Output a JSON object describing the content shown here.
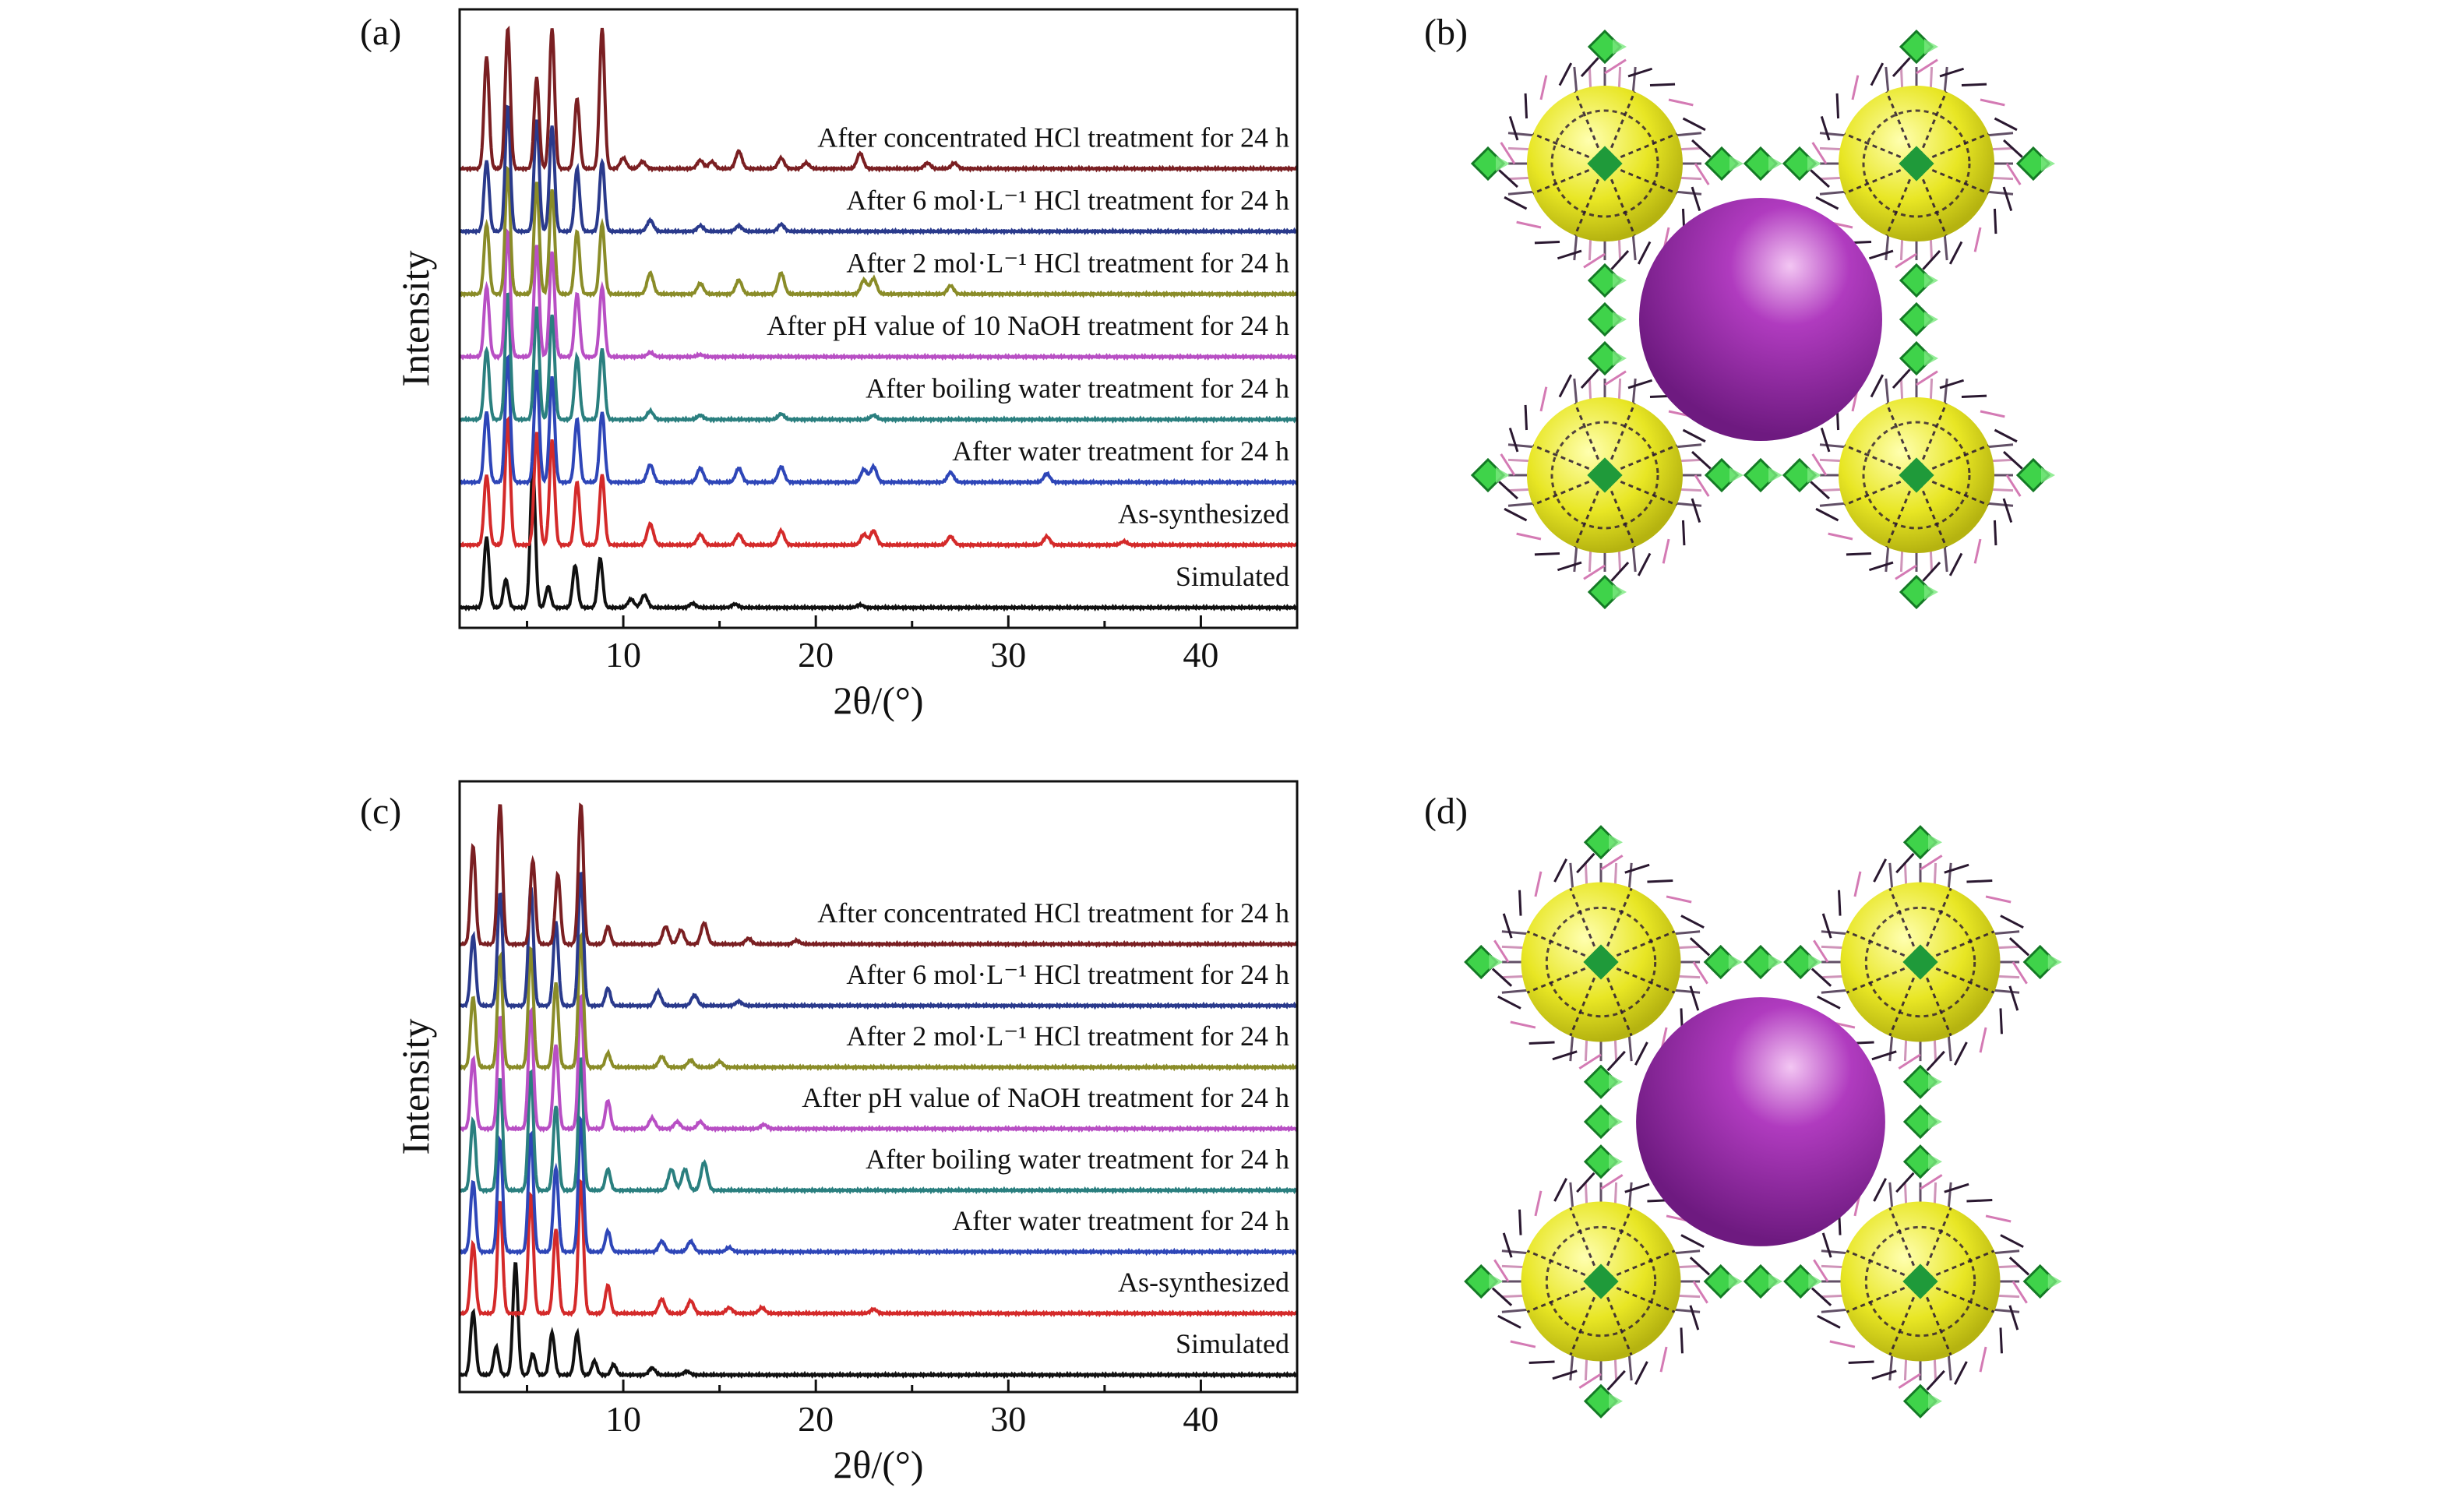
{
  "panels": {
    "a": "(a)",
    "b": "(b)",
    "c": "(c)",
    "d": "(d)"
  },
  "chart_data": [
    {
      "type": "line",
      "panel": "(a)",
      "xlabel": "2θ/(°)",
      "ylabel": "Intensity",
      "xlim": [
        1.5,
        45
      ],
      "xticks": [
        10,
        20,
        30,
        40
      ],
      "yticks_shown": false,
      "grid": false,
      "legend": "none (series labelled inline above each trace)",
      "series": [
        {
          "name": "Simulated",
          "color": "#111111",
          "peaks": [
            [
              2.9,
              1.0
            ],
            [
              3.9,
              0.4
            ],
            [
              5.3,
              2.0
            ],
            [
              6.1,
              0.3
            ],
            [
              7.5,
              0.6
            ],
            [
              8.8,
              0.7
            ],
            [
              10.4,
              0.12
            ],
            [
              11.1,
              0.18
            ],
            [
              13.6,
              0.06
            ],
            [
              15.8,
              0.05
            ],
            [
              22.3,
              0.04
            ]
          ]
        },
        {
          "name": "As-synthesized",
          "color": "#d42a2a",
          "peaks": [
            [
              2.9,
              1.0
            ],
            [
              4.0,
              1.8
            ],
            [
              5.5,
              1.6
            ],
            [
              6.3,
              1.5
            ],
            [
              7.6,
              0.9
            ],
            [
              8.9,
              1.0
            ],
            [
              11.4,
              0.3
            ],
            [
              14.0,
              0.15
            ],
            [
              16.0,
              0.15
            ],
            [
              18.2,
              0.2
            ],
            [
              22.5,
              0.15
            ],
            [
              23.0,
              0.2
            ],
            [
              27.0,
              0.12
            ],
            [
              32.0,
              0.12
            ],
            [
              36.0,
              0.05
            ]
          ]
        },
        {
          "name": "After water treatment for 24 h",
          "color": "#2e46b8",
          "peaks": [
            [
              2.9,
              1.0
            ],
            [
              4.0,
              1.8
            ],
            [
              5.5,
              1.6
            ],
            [
              6.3,
              1.5
            ],
            [
              7.6,
              0.9
            ],
            [
              8.9,
              1.0
            ],
            [
              11.4,
              0.25
            ],
            [
              14.0,
              0.2
            ],
            [
              16.0,
              0.2
            ],
            [
              18.2,
              0.22
            ],
            [
              22.5,
              0.18
            ],
            [
              23.0,
              0.22
            ],
            [
              27.0,
              0.14
            ],
            [
              32.0,
              0.12
            ]
          ]
        },
        {
          "name": "After boiling water treatment for 24 h",
          "color": "#2a7f7f",
          "peaks": [
            [
              2.9,
              1.0
            ],
            [
              4.0,
              1.8
            ],
            [
              5.5,
              1.6
            ],
            [
              6.3,
              1.5
            ],
            [
              7.6,
              0.9
            ],
            [
              8.9,
              1.0
            ],
            [
              11.4,
              0.12
            ],
            [
              14.0,
              0.06
            ],
            [
              18.2,
              0.08
            ],
            [
              23.0,
              0.06
            ]
          ]
        },
        {
          "name": "After pH value of 10 NaOH treatment for 24 h",
          "color": "#b84fc4",
          "peaks": [
            [
              2.9,
              1.0
            ],
            [
              4.0,
              1.8
            ],
            [
              5.5,
              1.6
            ],
            [
              6.3,
              1.5
            ],
            [
              7.6,
              0.9
            ],
            [
              8.9,
              1.0
            ],
            [
              11.4,
              0.06
            ],
            [
              14.0,
              0.03
            ]
          ]
        },
        {
          "name": "After 2 mol·L⁻¹ HCl treatment for 24 h",
          "color": "#8a8c28",
          "peaks": [
            [
              2.9,
              1.0
            ],
            [
              4.0,
              1.8
            ],
            [
              5.5,
              1.6
            ],
            [
              6.3,
              1.5
            ],
            [
              7.6,
              0.9
            ],
            [
              8.9,
              1.0
            ],
            [
              11.4,
              0.3
            ],
            [
              14.0,
              0.15
            ],
            [
              16.0,
              0.2
            ],
            [
              18.2,
              0.3
            ],
            [
              22.5,
              0.2
            ],
            [
              23.0,
              0.22
            ],
            [
              27.0,
              0.12
            ]
          ]
        },
        {
          "name": "After 6 mol·L⁻¹ HCl treatment for 24 h",
          "color": "#2a3a8c",
          "peaks": [
            [
              2.9,
              1.0
            ],
            [
              4.0,
              1.8
            ],
            [
              5.5,
              1.6
            ],
            [
              6.3,
              1.5
            ],
            [
              7.6,
              0.9
            ],
            [
              8.9,
              1.0
            ],
            [
              11.4,
              0.16
            ],
            [
              14.0,
              0.08
            ],
            [
              16.0,
              0.08
            ],
            [
              18.2,
              0.1
            ]
          ]
        },
        {
          "name": "After concentrated HCl treatment for 24 h",
          "color": "#7a1f22",
          "peaks": [
            [
              2.9,
              1.6
            ],
            [
              4.0,
              2.0
            ],
            [
              5.5,
              1.3
            ],
            [
              6.3,
              2.0
            ],
            [
              7.6,
              1.0
            ],
            [
              8.9,
              2.0
            ],
            [
              10.0,
              0.15
            ],
            [
              11.0,
              0.1
            ],
            [
              14.0,
              0.12
            ],
            [
              14.6,
              0.1
            ],
            [
              16.0,
              0.25
            ],
            [
              18.2,
              0.15
            ],
            [
              19.5,
              0.08
            ],
            [
              22.3,
              0.22
            ],
            [
              25.8,
              0.08
            ],
            [
              27.2,
              0.08
            ]
          ]
        }
      ]
    },
    {
      "type": "line",
      "panel": "(c)",
      "xlabel": "2θ/(°)",
      "ylabel": "Intensity",
      "xlim": [
        1.5,
        45
      ],
      "xticks": [
        10,
        20,
        30,
        40
      ],
      "yticks_shown": false,
      "grid": false,
      "legend": "none (series labelled inline above each trace)",
      "series": [
        {
          "name": "Simulated",
          "color": "#111111",
          "peaks": [
            [
              2.2,
              0.9
            ],
            [
              3.4,
              0.4
            ],
            [
              4.4,
              1.6
            ],
            [
              5.3,
              0.3
            ],
            [
              6.3,
              0.6
            ],
            [
              7.6,
              0.6
            ],
            [
              8.5,
              0.2
            ],
            [
              9.5,
              0.15
            ],
            [
              11.5,
              0.1
            ],
            [
              13.3,
              0.05
            ]
          ]
        },
        {
          "name": "As-synthesized",
          "color": "#d42a2a",
          "peaks": [
            [
              2.2,
              1.0
            ],
            [
              3.6,
              1.6
            ],
            [
              5.2,
              1.7
            ],
            [
              6.5,
              1.2
            ],
            [
              7.8,
              1.9
            ],
            [
              9.2,
              0.4
            ],
            [
              12.0,
              0.2
            ],
            [
              13.5,
              0.18
            ],
            [
              15.5,
              0.08
            ],
            [
              17.2,
              0.08
            ],
            [
              23.0,
              0.06
            ]
          ]
        },
        {
          "name": "After water treatment for 24 h",
          "color": "#2e46b8",
          "peaks": [
            [
              2.2,
              1.0
            ],
            [
              3.6,
              1.6
            ],
            [
              5.2,
              1.7
            ],
            [
              6.5,
              1.2
            ],
            [
              7.8,
              1.9
            ],
            [
              9.2,
              0.3
            ],
            [
              12.0,
              0.15
            ],
            [
              13.5,
              0.15
            ],
            [
              15.5,
              0.06
            ]
          ]
        },
        {
          "name": "After boiling water treatment for 24 h",
          "color": "#2a7f7f",
          "peaks": [
            [
              2.2,
              1.0
            ],
            [
              3.6,
              1.6
            ],
            [
              5.2,
              1.7
            ],
            [
              6.5,
              1.2
            ],
            [
              7.8,
              1.9
            ],
            [
              9.2,
              0.3
            ],
            [
              12.5,
              0.3
            ],
            [
              13.2,
              0.3
            ],
            [
              14.2,
              0.4
            ]
          ]
        },
        {
          "name": "After pH value of NaOH treatment for 24 h",
          "color": "#b84fc4",
          "peaks": [
            [
              2.2,
              1.0
            ],
            [
              3.6,
              1.6
            ],
            [
              5.2,
              1.7
            ],
            [
              6.5,
              1.2
            ],
            [
              7.8,
              1.9
            ],
            [
              9.2,
              0.4
            ],
            [
              11.5,
              0.15
            ],
            [
              12.8,
              0.1
            ],
            [
              14.0,
              0.1
            ],
            [
              17.3,
              0.06
            ]
          ]
        },
        {
          "name": "After 2 mol·L⁻¹ HCl treatment for 24 h",
          "color": "#8a8c28",
          "peaks": [
            [
              2.2,
              1.0
            ],
            [
              3.6,
              1.6
            ],
            [
              5.2,
              1.7
            ],
            [
              6.5,
              1.2
            ],
            [
              7.8,
              1.9
            ],
            [
              9.2,
              0.2
            ],
            [
              12.0,
              0.15
            ],
            [
              13.5,
              0.1
            ],
            [
              15.0,
              0.08
            ]
          ]
        },
        {
          "name": "After 6 mol·L⁻¹ HCl treatment for 24 h",
          "color": "#2a3a8c",
          "peaks": [
            [
              2.2,
              1.0
            ],
            [
              3.6,
              1.6
            ],
            [
              5.2,
              1.7
            ],
            [
              6.5,
              1.2
            ],
            [
              7.8,
              1.9
            ],
            [
              9.2,
              0.25
            ],
            [
              11.8,
              0.2
            ],
            [
              13.7,
              0.15
            ],
            [
              16.0,
              0.06
            ]
          ]
        },
        {
          "name": "After concentrated HCl treatment for 24 h",
          "color": "#7a1f22",
          "peaks": [
            [
              2.2,
              1.4
            ],
            [
              3.6,
              2.0
            ],
            [
              5.3,
              1.2
            ],
            [
              6.6,
              1.0
            ],
            [
              7.8,
              2.0
            ],
            [
              9.2,
              0.25
            ],
            [
              12.2,
              0.25
            ],
            [
              13.0,
              0.2
            ],
            [
              14.2,
              0.3
            ],
            [
              16.5,
              0.08
            ],
            [
              19.0,
              0.05
            ]
          ]
        }
      ]
    }
  ]
}
